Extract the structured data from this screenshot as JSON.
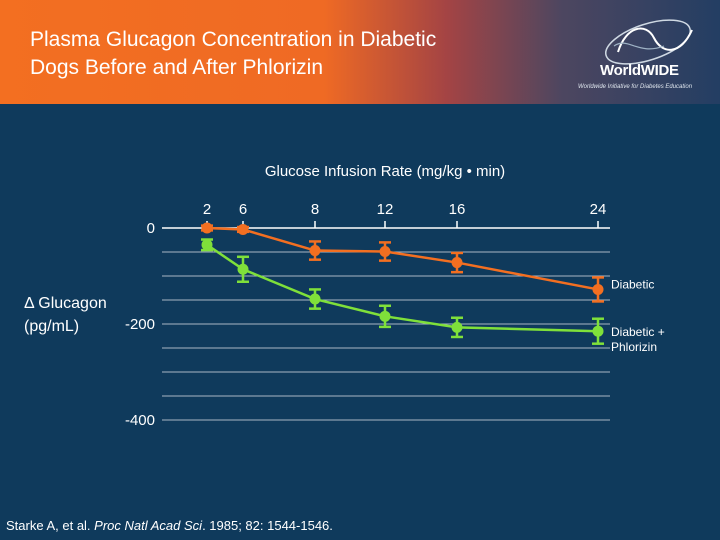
{
  "header": {
    "title_line1": "Plasma Glucagon Concentration in Diabetic",
    "title_line2": "Dogs Before and After Phlorizin",
    "logo_name": "WorldWIDE",
    "logo_tagline": "Worldwide Initiative for Diabetes Education",
    "logo_icon": "globe-swirl-icon"
  },
  "colors": {
    "background": "#0f3a5c",
    "diabetic": "#f36f21",
    "phlorizin": "#7fe03a",
    "gridline": "#a8b6c4"
  },
  "citation": {
    "authors": "Starke A, et al. ",
    "journal": "Proc Natl Acad Sci",
    "details": ". 1985; 82: 1544-1546."
  },
  "chart_data": {
    "type": "line",
    "xlabel": "Glucose Infusion Rate (mg/kg • min)",
    "ylabel_line1": "Δ Glucagon",
    "ylabel_line2": "(pg/mL)",
    "x": [
      2,
      6,
      8,
      12,
      16,
      24
    ],
    "x_ticks": [
      "2",
      "6",
      "8",
      "12",
      "16",
      "24"
    ],
    "y_ticks": [
      "0",
      "-200",
      "-400"
    ],
    "ylim": [
      -400,
      0
    ],
    "grid": true,
    "series": [
      {
        "name": "Diabetic",
        "values": [
          0,
          -3,
          -47,
          -49,
          -72,
          -128
        ],
        "errors": [
          5,
          5,
          19,
          19,
          20,
          25
        ]
      },
      {
        "name": "Diabetic + Phlorizin",
        "values": [
          -35,
          -86,
          -148,
          -184,
          -207,
          -215
        ],
        "errors": [
          11,
          26,
          20,
          22,
          20,
          26
        ]
      }
    ]
  }
}
